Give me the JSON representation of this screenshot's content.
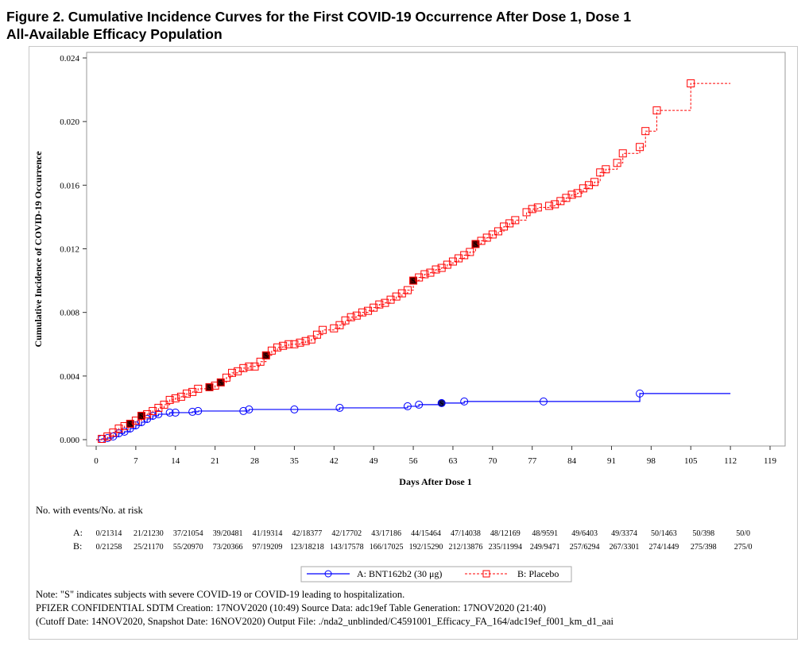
{
  "title_line1": "Figure 2. Cumulative Incidence Curves for the First COVID-19 Occurrence After Dose 1, Dose 1",
  "title_line2": "All-Available Efficacy Population",
  "chart_data": {
    "type": "line",
    "step": true,
    "xlabel": "Days After Dose 1",
    "ylabel": "Cumulative Incidence of COVID-19 Occurrence",
    "xlim": [
      0,
      119
    ],
    "ylim": [
      0,
      0.024
    ],
    "xticks": [
      0,
      7,
      14,
      21,
      28,
      35,
      42,
      49,
      56,
      63,
      70,
      77,
      84,
      91,
      98,
      105,
      112,
      119
    ],
    "yticks": [
      "0.000",
      "0.004",
      "0.008",
      "0.012",
      "0.016",
      "0.020",
      "0.024"
    ],
    "grid": false,
    "legend_position": "bottom",
    "series": [
      {
        "name": "A: BNT162b2 (30 μg)",
        "color": "#0000ff",
        "marker": "circle",
        "line": "solid",
        "end_day": 112,
        "points": [
          [
            1,
            5e-05
          ],
          [
            2,
            0.0001
          ],
          [
            3,
            0.0002
          ],
          [
            4,
            0.0004
          ],
          [
            5,
            0.0005
          ],
          [
            6,
            0.0007
          ],
          [
            7,
            0.0009
          ],
          [
            8,
            0.0011
          ],
          [
            9,
            0.0013
          ],
          [
            10,
            0.0015
          ],
          [
            11,
            0.0016
          ],
          [
            13,
            0.0017
          ],
          [
            14,
            0.0017
          ],
          [
            17,
            0.00175
          ],
          [
            18,
            0.0018
          ],
          [
            26,
            0.0018
          ],
          [
            27,
            0.0019
          ],
          [
            35,
            0.0019
          ],
          [
            43,
            0.002
          ],
          [
            55,
            0.0021
          ],
          [
            57,
            0.0022
          ],
          [
            61,
            0.0023
          ],
          [
            65,
            0.0024
          ],
          [
            79,
            0.0024
          ],
          [
            96,
            0.0029
          ]
        ],
        "severe_days": [
          61
        ]
      },
      {
        "name": "B: Placebo",
        "color": "#ff0000",
        "marker": "square",
        "line": "dashed",
        "end_day": 112,
        "points": [
          [
            1,
            5e-05
          ],
          [
            2,
            0.0002
          ],
          [
            3,
            0.00045
          ],
          [
            4,
            0.0007
          ],
          [
            5,
            0.00085
          ],
          [
            6,
            0.001
          ],
          [
            7,
            0.0012
          ],
          [
            8,
            0.0015
          ],
          [
            9,
            0.0016
          ],
          [
            10,
            0.0018
          ],
          [
            11,
            0.002
          ],
          [
            12,
            0.0022
          ],
          [
            13,
            0.0025
          ],
          [
            14,
            0.0026
          ],
          [
            15,
            0.0027
          ],
          [
            16,
            0.0029
          ],
          [
            17,
            0.003
          ],
          [
            18,
            0.0032
          ],
          [
            20,
            0.0033
          ],
          [
            21,
            0.0034
          ],
          [
            22,
            0.0036
          ],
          [
            23,
            0.0039
          ],
          [
            24,
            0.0042
          ],
          [
            25,
            0.0043
          ],
          [
            26,
            0.0045
          ],
          [
            27,
            0.0046
          ],
          [
            28,
            0.0046
          ],
          [
            29,
            0.0049
          ],
          [
            30,
            0.0053
          ],
          [
            31,
            0.0056
          ],
          [
            32,
            0.0058
          ],
          [
            33,
            0.0059
          ],
          [
            34,
            0.006
          ],
          [
            35,
            0.006
          ],
          [
            36,
            0.0061
          ],
          [
            37,
            0.0062
          ],
          [
            38,
            0.0063
          ],
          [
            39,
            0.0066
          ],
          [
            40,
            0.0069
          ],
          [
            42,
            0.007
          ],
          [
            43,
            0.0072
          ],
          [
            44,
            0.0075
          ],
          [
            45,
            0.0077
          ],
          [
            46,
            0.0078
          ],
          [
            47,
            0.008
          ],
          [
            48,
            0.0081
          ],
          [
            49,
            0.0083
          ],
          [
            50,
            0.0085
          ],
          [
            51,
            0.0086
          ],
          [
            52,
            0.0088
          ],
          [
            53,
            0.009
          ],
          [
            54,
            0.0092
          ],
          [
            55,
            0.0094
          ],
          [
            56,
            0.01
          ],
          [
            57,
            0.0102
          ],
          [
            58,
            0.0104
          ],
          [
            59,
            0.0105
          ],
          [
            60,
            0.0107
          ],
          [
            61,
            0.0108
          ],
          [
            62,
            0.011
          ],
          [
            63,
            0.0112
          ],
          [
            64,
            0.0114
          ],
          [
            65,
            0.0116
          ],
          [
            66,
            0.0118
          ],
          [
            67,
            0.0123
          ],
          [
            68,
            0.0125
          ],
          [
            69,
            0.0127
          ],
          [
            70,
            0.0129
          ],
          [
            71,
            0.0131
          ],
          [
            72,
            0.0134
          ],
          [
            73,
            0.0136
          ],
          [
            74,
            0.0138
          ],
          [
            76,
            0.0143
          ],
          [
            77,
            0.0145
          ],
          [
            78,
            0.0146
          ],
          [
            80,
            0.0147
          ],
          [
            81,
            0.0148
          ],
          [
            82,
            0.015
          ],
          [
            83,
            0.0152
          ],
          [
            84,
            0.0154
          ],
          [
            85,
            0.0155
          ],
          [
            86,
            0.0158
          ],
          [
            87,
            0.016
          ],
          [
            88,
            0.0162
          ],
          [
            89,
            0.0168
          ],
          [
            90,
            0.017
          ],
          [
            92,
            0.0174
          ],
          [
            93,
            0.018
          ],
          [
            96,
            0.0184
          ],
          [
            97,
            0.0194
          ],
          [
            99,
            0.0207
          ],
          [
            105,
            0.0224
          ]
        ],
        "severe_days": [
          6,
          8,
          20,
          22,
          30,
          56,
          67
        ]
      }
    ],
    "severe_marker_label": "S"
  },
  "risk_table": {
    "heading": "No. with events/No. at risk",
    "rows": [
      {
        "label": "A:",
        "values": [
          "0/21314",
          "21/21230",
          "37/21054",
          "39/20481",
          "41/19314",
          "42/18377",
          "42/17702",
          "43/17186",
          "44/15464",
          "47/14038",
          "48/12169",
          "48/9591",
          "49/6403",
          "49/3374",
          "50/1463",
          "50/398",
          "50/0"
        ]
      },
      {
        "label": "B:",
        "values": [
          "0/21258",
          "25/21170",
          "55/20970",
          "73/20366",
          "97/19209",
          "123/18218",
          "143/17578",
          "166/17025",
          "192/15290",
          "212/13876",
          "235/11994",
          "249/9471",
          "257/6294",
          "267/3301",
          "274/1449",
          "275/398",
          "275/0"
        ]
      }
    ]
  },
  "footnotes": [
    "Note: \"S\" indicates subjects with severe COVID-19 or COVID-19 leading to hospitalization.",
    "PFIZER CONFIDENTIAL  SDTM Creation: 17NOV2020 (10:49)  Source Data: adc19ef  Table Generation: 17NOV2020 (21:40)",
    "(Cutoff Date: 14NOV2020, Snapshot Date: 16NOV2020) Output File: ./nda2_unblinded/C4591001_Efficacy_FA_164/adc19ef_f001_km_d1_aai"
  ]
}
